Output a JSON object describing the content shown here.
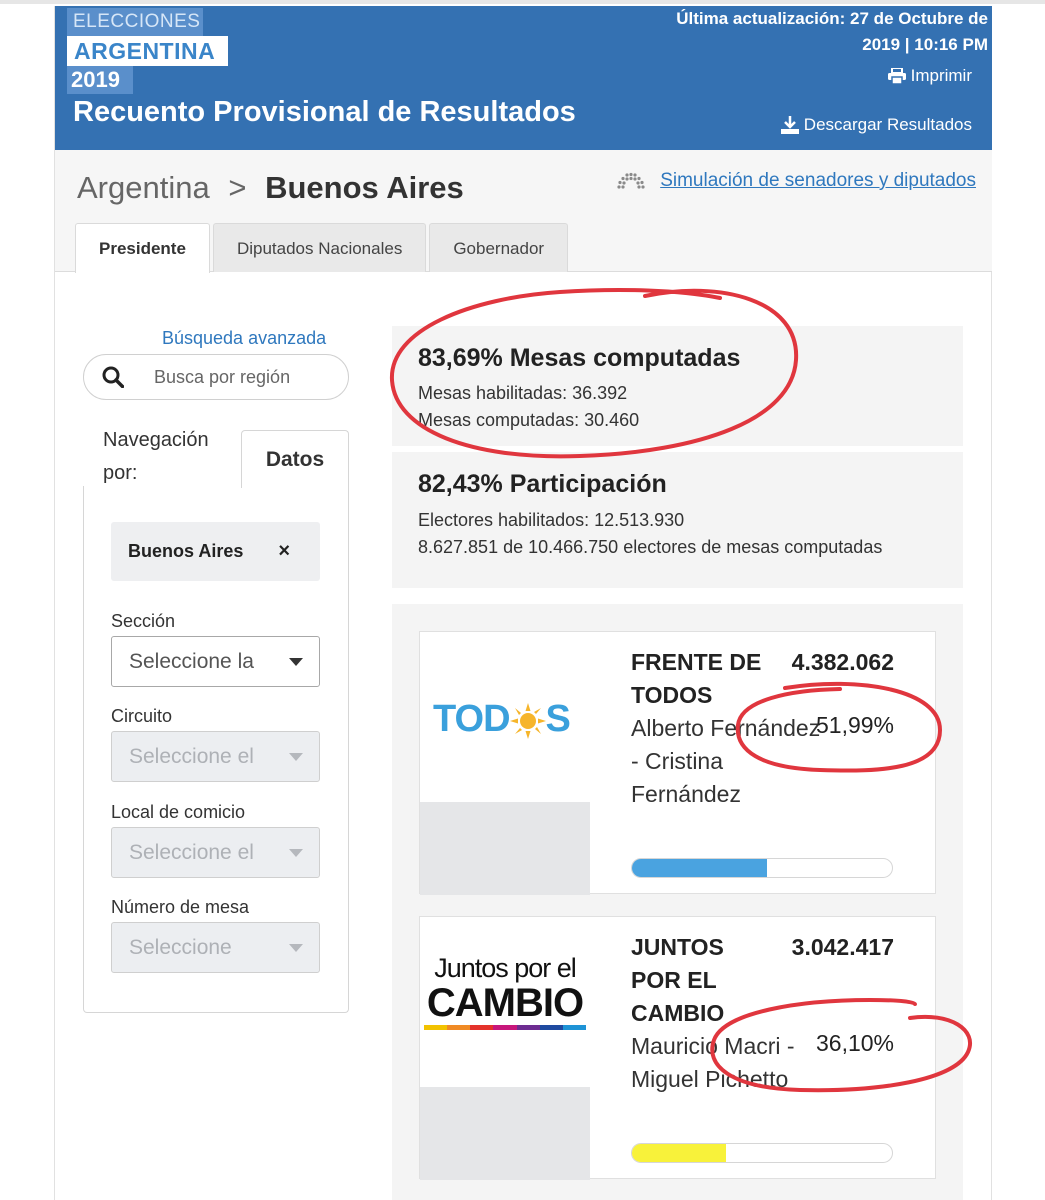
{
  "header": {
    "logo_line1": "ELECCIONES",
    "logo_line2": "ARGENTINA",
    "logo_line3": "2019",
    "title": "Recuento Provisional de Resultados",
    "update_line1": "Última actualización: 27 de Octubre de",
    "update_line2": "2019 | 10:16 PM",
    "print_label": "Imprimir",
    "download_label": "Descargar Resultados",
    "print_icon": "printer-icon",
    "download_icon": "download-icon"
  },
  "breadcrumb": {
    "root": "Argentina",
    "separator": ">",
    "current": "Buenos Aires"
  },
  "simulation_link": "Simulación de senadores y diputados",
  "tabs": [
    {
      "label": "Presidente",
      "active": true
    },
    {
      "label": "Diputados Nacionales",
      "active": false
    },
    {
      "label": "Gobernador",
      "active": false
    }
  ],
  "sidebar": {
    "advanced_search": "Búsqueda avanzada",
    "search_placeholder": "Busca por región",
    "nav_label": "Navegación por:",
    "data_tab": "Datos",
    "selected_chip": "Buenos Aires",
    "chip_close": "×",
    "filters": [
      {
        "label": "Sección",
        "placeholder": "Seleccione la",
        "enabled": true
      },
      {
        "label": "Circuito",
        "placeholder": "Seleccione el",
        "enabled": false
      },
      {
        "label": "Local de comicio",
        "placeholder": "Seleccione el",
        "enabled": false
      },
      {
        "label": "Número de mesa",
        "placeholder": "Seleccione",
        "enabled": false
      }
    ]
  },
  "stats": {
    "mesas_title": "83,69% Mesas computadas",
    "mesas_habilitadas": "Mesas habilitadas: 36.392",
    "mesas_computadas": "Mesas computadas: 30.460",
    "participacion_title": "82,43% Participación",
    "electores_habilitados": "Electores habilitados: 12.513.930",
    "electores_computados": "8.627.851 de 10.466.750 electores de mesas computadas"
  },
  "results": [
    {
      "party": "FRENTE DE TODOS",
      "votes": "4.382.062",
      "candidates": "Alberto Fernández - Cristina Fernández",
      "percent": "51,99%",
      "bar_fraction": 0.52,
      "bar_color": "#4aa3e0",
      "logo_text": "TODOS"
    },
    {
      "party": "JUNTOS POR EL CAMBIO",
      "votes": "3.042.417",
      "candidates": "Mauricio Macri - Miguel Pichetto",
      "percent": "36,10%",
      "bar_fraction": 0.361,
      "bar_color": "#f8f23a",
      "logo_text_1": "Juntos por el",
      "logo_text_2": "CAMBIO"
    }
  ],
  "colors": {
    "header_blue": "#3471b2",
    "link_blue": "#2f78be",
    "annotation_red": "#e0363e"
  }
}
